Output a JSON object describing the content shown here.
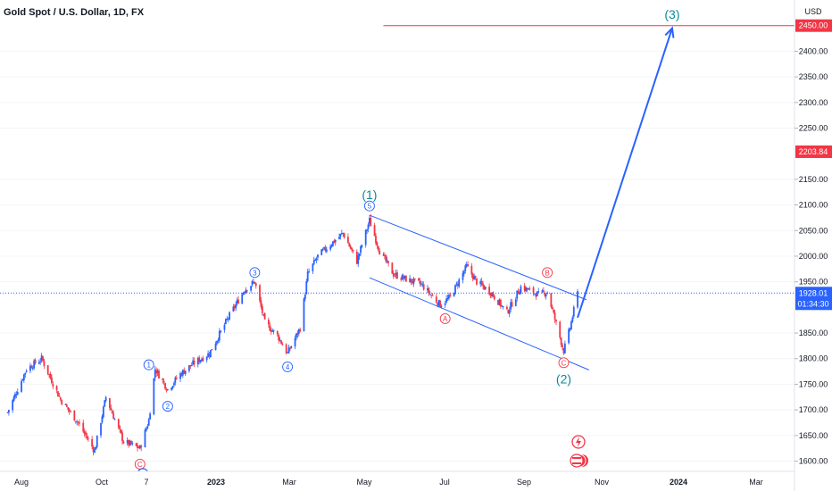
{
  "header": {
    "title": "Gold Spot / U.S. Dollar, 1D, FX"
  },
  "price_axis": {
    "currency": "USD",
    "ticks": [
      "2400.00",
      "2350.00",
      "2300.00",
      "2250.00",
      "2150.00",
      "2100.00",
      "2050.00",
      "2000.00",
      "1950.00",
      "1850.00",
      "1800.00",
      "1750.00",
      "1700.00",
      "1650.00",
      "1600.00"
    ],
    "tick_values": [
      2400,
      2350,
      2300,
      2250,
      2150,
      2100,
      2050,
      2000,
      1950,
      1850,
      1800,
      1750,
      1700,
      1650,
      1600
    ]
  },
  "time_axis": {
    "labels": [
      "Aug",
      "Oct",
      "7",
      "2023",
      "Mar",
      "May",
      "Jul",
      "Sep",
      "Nov",
      "2024",
      "Mar"
    ],
    "bold": [
      "2023",
      "2024"
    ]
  },
  "badges": {
    "target": {
      "label": "2450.00",
      "value": 2450,
      "color": "#f23645"
    },
    "level": {
      "label": "2203.84",
      "value": 2203.84,
      "color": "#f23645"
    },
    "last": {
      "label": "1928.01",
      "countdown": "01:34:30",
      "value": 1928.01,
      "color": "#2962ff"
    }
  },
  "wave_labels": {
    "major": [
      "(1)",
      "(2)",
      "(3)"
    ],
    "minor": [
      "1",
      "2",
      "3",
      "4",
      "5"
    ],
    "corrective": [
      "A",
      "B",
      "C",
      "C"
    ]
  },
  "colors": {
    "up": "#2962ff",
    "down": "#f23645",
    "teal": "#089981",
    "major_wave": "#0a8a9a"
  },
  "icons": [
    "lightning-icon",
    "us-flag-event-icon"
  ],
  "chart_data": {
    "type": "candlestick",
    "title": "Gold Spot / U.S. Dollar, 1D, FX",
    "ylim": [
      1580,
      2500
    ],
    "x_range": [
      "2022-07-15",
      "2024-04-05"
    ],
    "anchors": [
      [
        "2022-07-21",
        1695
      ],
      [
        "2022-08-05",
        1780
      ],
      [
        "2022-08-17",
        1800
      ],
      [
        "2022-09-01",
        1720
      ],
      [
        "2022-09-15",
        1675
      ],
      [
        "2022-09-28",
        1620
      ],
      [
        "2022-10-07",
        1725
      ],
      [
        "2022-10-21",
        1638
      ],
      [
        "2022-11-03",
        1625
      ],
      [
        "2022-11-10",
        1680
      ],
      [
        "2022-11-15",
        1780
      ],
      [
        "2022-11-25",
        1740
      ],
      [
        "2022-12-05",
        1770
      ],
      [
        "2022-12-15",
        1790
      ],
      [
        "2022-12-28",
        1810
      ],
      [
        "2023-01-12",
        1880
      ],
      [
        "2023-01-25",
        1935
      ],
      [
        "2023-02-02",
        1950
      ],
      [
        "2023-02-10",
        1870
      ],
      [
        "2023-02-20",
        1845
      ],
      [
        "2023-02-28",
        1810
      ],
      [
        "2023-03-10",
        1860
      ],
      [
        "2023-03-16",
        1965
      ],
      [
        "2023-03-24",
        2000
      ],
      [
        "2023-04-04",
        2025
      ],
      [
        "2023-04-13",
        2045
      ],
      [
        "2023-04-24",
        1990
      ],
      [
        "2023-05-04",
        2070
      ],
      [
        "2023-05-12",
        2010
      ],
      [
        "2023-05-23",
        1965
      ],
      [
        "2023-06-02",
        1955
      ],
      [
        "2023-06-14",
        1945
      ],
      [
        "2023-06-29",
        1905
      ],
      [
        "2023-07-07",
        1920
      ],
      [
        "2023-07-20",
        1980
      ],
      [
        "2023-07-28",
        1950
      ],
      [
        "2023-08-08",
        1930
      ],
      [
        "2023-08-21",
        1890
      ],
      [
        "2023-09-01",
        1940
      ],
      [
        "2023-09-15",
        1925
      ],
      [
        "2023-09-22",
        1930
      ],
      [
        "2023-10-05",
        1815
      ],
      [
        "2023-10-10",
        1860
      ],
      [
        "2023-10-16",
        1928.01
      ]
    ],
    "channel": {
      "upper": [
        [
          "2023-05-04",
          2080
        ],
        [
          "2023-10-23",
          1915
        ]
      ],
      "lower": [
        [
          "2023-05-04",
          1958
        ],
        [
          "2023-10-25",
          1778
        ]
      ]
    },
    "projection": [
      [
        "2023-10-16",
        1880
      ],
      [
        "2023-12-30",
        2445
      ]
    ],
    "horizontal_lines": [
      {
        "value": 2450,
        "from": "2023-05-15"
      }
    ],
    "last_price_line": {
      "value": 1928.01
    },
    "wave_points": [
      {
        "text": "(1)",
        "x": "2023-05-04",
        "y": 2120,
        "class": "major"
      },
      {
        "text": "5",
        "x": "2023-05-04",
        "y": 2098,
        "class": "minor"
      },
      {
        "text": "(2)",
        "x": "2023-10-05",
        "y": 1760,
        "class": "major"
      },
      {
        "text": "C",
        "x": "2023-10-05",
        "y": 1792,
        "class": "corrective"
      },
      {
        "text": "(3)",
        "x": "2023-12-30",
        "y": 2472,
        "class": "major"
      },
      {
        "text": "1",
        "x": "2022-11-10",
        "y": 1788,
        "class": "minor"
      },
      {
        "text": "2",
        "x": "2022-11-25",
        "y": 1707,
        "class": "minor"
      },
      {
        "text": "3",
        "x": "2023-02-02",
        "y": 1968,
        "class": "minor"
      },
      {
        "text": "4",
        "x": "2023-02-28",
        "y": 1784,
        "class": "minor"
      },
      {
        "text": "A",
        "x": "2023-07-03",
        "y": 1878,
        "class": "corrective"
      },
      {
        "text": "B",
        "x": "2023-09-22",
        "y": 1968,
        "class": "corrective"
      },
      {
        "text": "C",
        "x": "2022-11-03",
        "y": 1594,
        "class": "corrective"
      }
    ]
  }
}
